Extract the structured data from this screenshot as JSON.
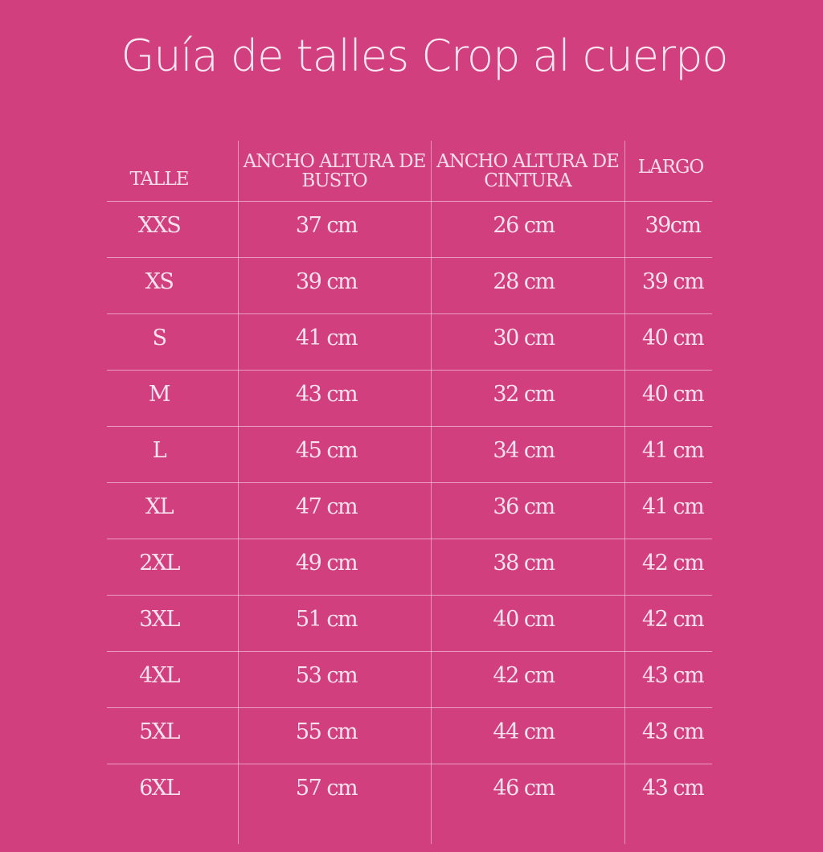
{
  "title": "Guía de talles Crop al cuerpo",
  "table": {
    "headers": [
      "TALLE",
      "ANCHO ALTURA DE BUSTO",
      "ANCHO ALTURA DE CINTURA",
      "LARGO"
    ],
    "rows": [
      [
        "XXS",
        "37 cm",
        "26 cm",
        "39cm"
      ],
      [
        "XS",
        "39  cm",
        "28 cm",
        "39 cm"
      ],
      [
        "S",
        "41 cm",
        "30 cm",
        "40 cm"
      ],
      [
        "M",
        "43 cm",
        "32 cm",
        "40 cm"
      ],
      [
        "L",
        "45 cm",
        "34 cm",
        "41 cm"
      ],
      [
        "XL",
        "47 cm",
        "36 cm",
        "41 cm"
      ],
      [
        "2XL",
        "49 cm",
        "38 cm",
        "42 cm"
      ],
      [
        "3XL",
        "51 cm",
        "40 cm",
        "42 cm"
      ],
      [
        "4XL",
        "53 cm",
        "42 cm",
        "43 cm"
      ],
      [
        "5XL",
        "55 cm",
        "44 cm",
        "43 cm"
      ],
      [
        "6XL",
        "57 cm",
        "46 cm",
        "43 cm"
      ]
    ]
  },
  "colors": {
    "background": "#d23f7f",
    "text": "#f7e3ee"
  }
}
